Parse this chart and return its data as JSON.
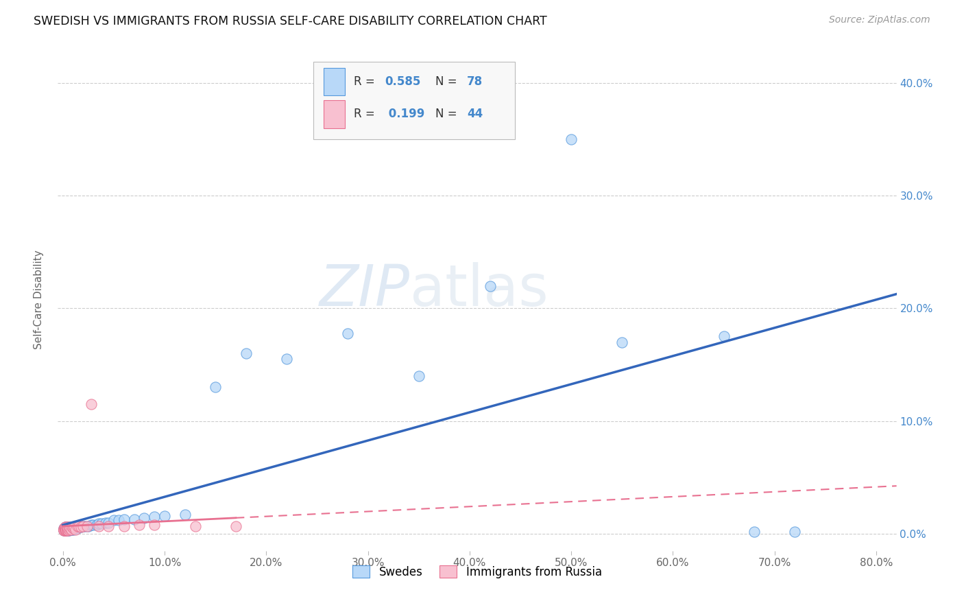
{
  "title": "SWEDISH VS IMMIGRANTS FROM RUSSIA SELF-CARE DISABILITY CORRELATION CHART",
  "source": "Source: ZipAtlas.com",
  "ylabel": "Self-Care Disability",
  "x_ticks": [
    0.0,
    0.1,
    0.2,
    0.3,
    0.4,
    0.5,
    0.6,
    0.7,
    0.8
  ],
  "y_ticks": [
    0.0,
    0.1,
    0.2,
    0.3,
    0.4
  ],
  "xlim": [
    -0.005,
    0.82
  ],
  "ylim": [
    -0.015,
    0.43
  ],
  "background_color": "#ffffff",
  "grid_color": "#cccccc",
  "swedes_fill": "#b8d8f8",
  "swedes_edge": "#5599dd",
  "russia_fill": "#f8c0d0",
  "russia_edge": "#e87090",
  "swedes_line_color": "#3366bb",
  "russia_line_color": "#e87090",
  "bottom_legend_1": "Swedes",
  "bottom_legend_2": "Immigrants from Russia",
  "watermark_zip": "ZIP",
  "watermark_atlas": "atlas",
  "swedes_x": [
    0.001,
    0.001,
    0.001,
    0.001,
    0.002,
    0.002,
    0.002,
    0.002,
    0.002,
    0.002,
    0.003,
    0.003,
    0.003,
    0.003,
    0.003,
    0.003,
    0.004,
    0.004,
    0.004,
    0.004,
    0.004,
    0.004,
    0.005,
    0.005,
    0.005,
    0.005,
    0.005,
    0.005,
    0.006,
    0.006,
    0.006,
    0.006,
    0.007,
    0.007,
    0.007,
    0.008,
    0.008,
    0.009,
    0.009,
    0.01,
    0.01,
    0.011,
    0.012,
    0.013,
    0.014,
    0.015,
    0.016,
    0.017,
    0.018,
    0.02,
    0.022,
    0.025,
    0.028,
    0.03,
    0.033,
    0.035,
    0.038,
    0.042,
    0.045,
    0.05,
    0.055,
    0.06,
    0.07,
    0.08,
    0.09,
    0.1,
    0.12,
    0.15,
    0.18,
    0.22,
    0.28,
    0.35,
    0.42,
    0.5,
    0.55,
    0.65,
    0.68,
    0.72
  ],
  "swedes_y": [
    0.004,
    0.003,
    0.005,
    0.004,
    0.004,
    0.003,
    0.005,
    0.004,
    0.003,
    0.006,
    0.005,
    0.003,
    0.004,
    0.006,
    0.003,
    0.005,
    0.004,
    0.003,
    0.005,
    0.004,
    0.003,
    0.006,
    0.004,
    0.003,
    0.005,
    0.004,
    0.003,
    0.006,
    0.004,
    0.005,
    0.003,
    0.004,
    0.005,
    0.004,
    0.006,
    0.004,
    0.005,
    0.004,
    0.006,
    0.004,
    0.005,
    0.005,
    0.005,
    0.006,
    0.005,
    0.006,
    0.006,
    0.007,
    0.006,
    0.007,
    0.007,
    0.007,
    0.008,
    0.008,
    0.008,
    0.009,
    0.009,
    0.01,
    0.01,
    0.012,
    0.012,
    0.013,
    0.013,
    0.014,
    0.015,
    0.016,
    0.017,
    0.13,
    0.16,
    0.155,
    0.178,
    0.14,
    0.22,
    0.35,
    0.17,
    0.175,
    0.002,
    0.002
  ],
  "russia_x": [
    0.001,
    0.001,
    0.001,
    0.001,
    0.001,
    0.002,
    0.002,
    0.002,
    0.002,
    0.002,
    0.002,
    0.003,
    0.003,
    0.003,
    0.003,
    0.003,
    0.004,
    0.004,
    0.004,
    0.004,
    0.005,
    0.005,
    0.005,
    0.006,
    0.006,
    0.007,
    0.008,
    0.009,
    0.01,
    0.011,
    0.012,
    0.014,
    0.016,
    0.018,
    0.02,
    0.024,
    0.028,
    0.035,
    0.045,
    0.06,
    0.075,
    0.09,
    0.13,
    0.17
  ],
  "russia_y": [
    0.004,
    0.003,
    0.005,
    0.004,
    0.003,
    0.004,
    0.003,
    0.005,
    0.004,
    0.006,
    0.003,
    0.005,
    0.004,
    0.003,
    0.006,
    0.004,
    0.005,
    0.003,
    0.004,
    0.006,
    0.004,
    0.003,
    0.005,
    0.004,
    0.006,
    0.005,
    0.004,
    0.006,
    0.005,
    0.006,
    0.004,
    0.007,
    0.007,
    0.006,
    0.007,
    0.007,
    0.115,
    0.007,
    0.007,
    0.007,
    0.008,
    0.008,
    0.007,
    0.007
  ]
}
